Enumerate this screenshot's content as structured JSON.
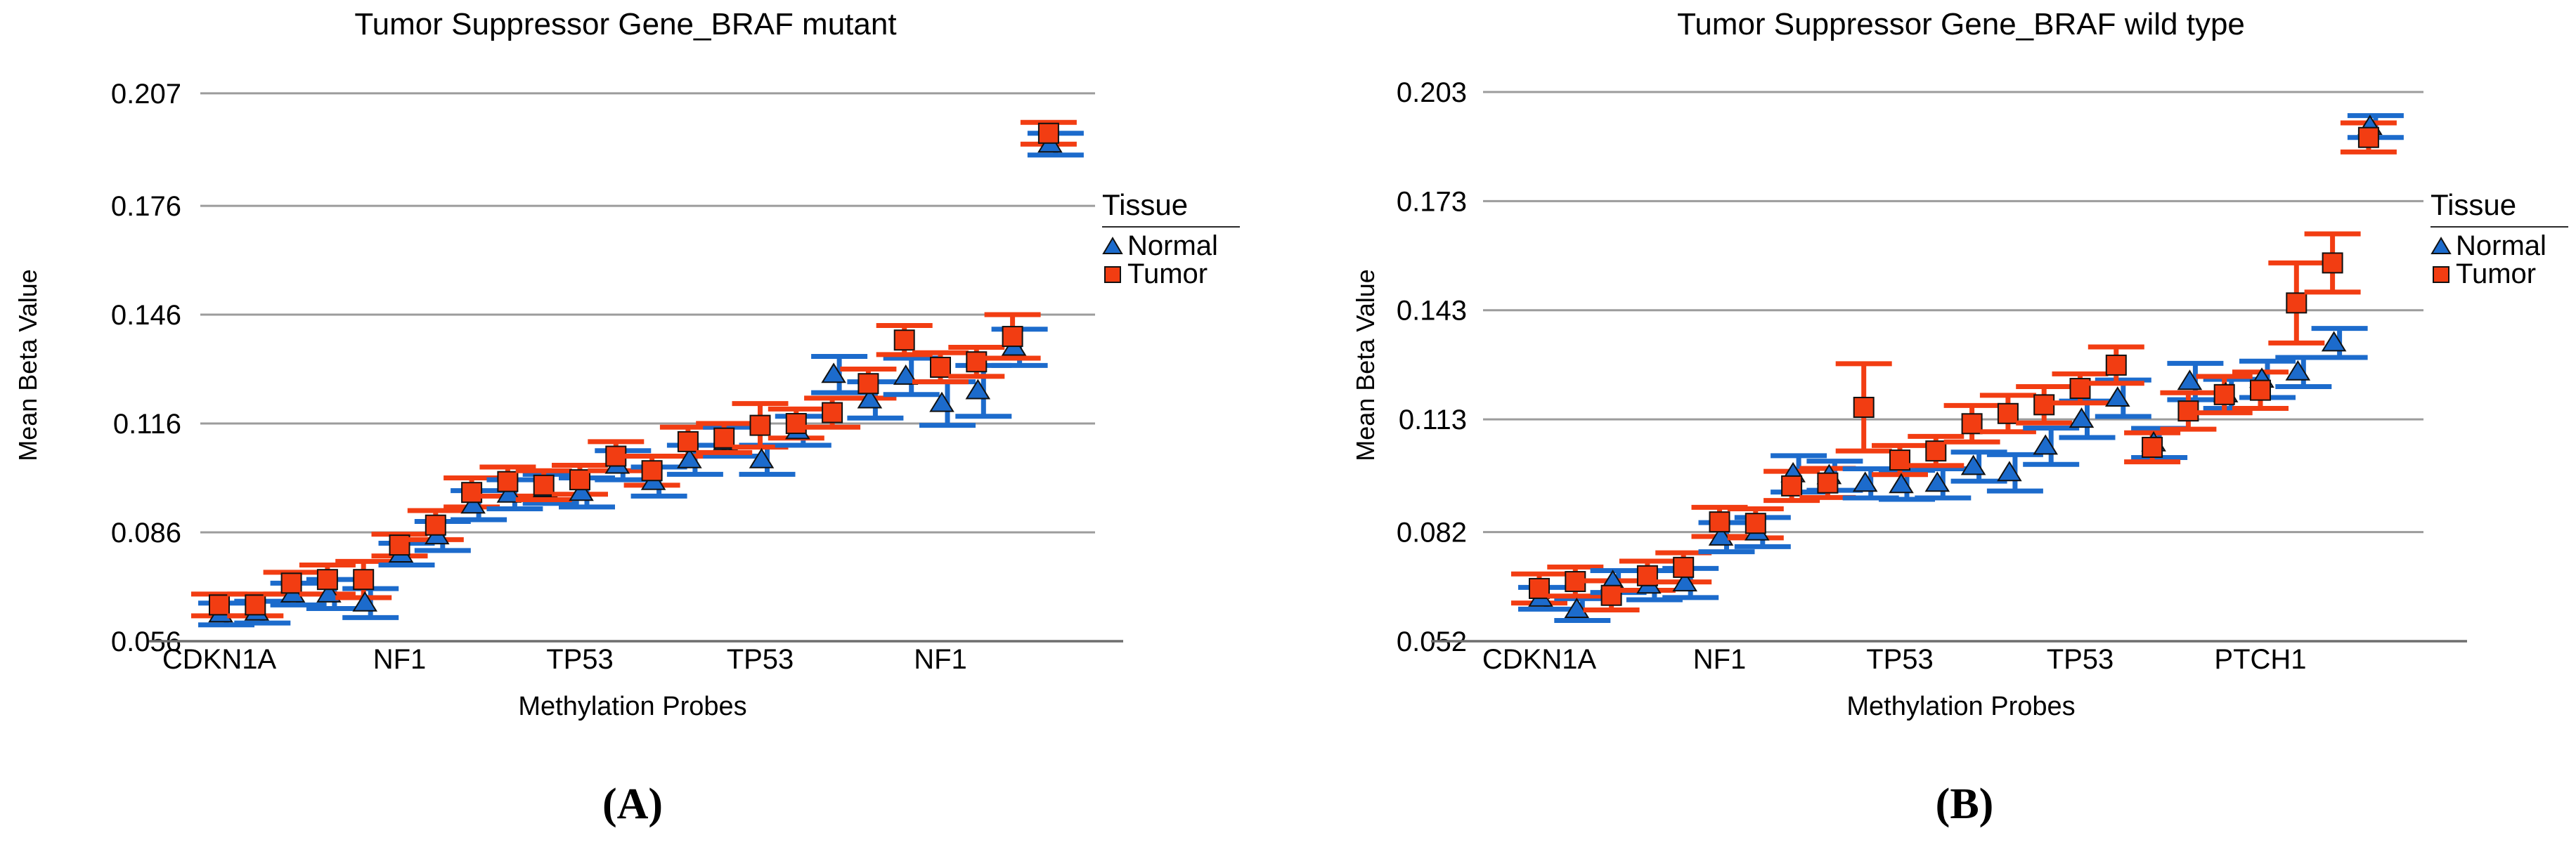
{
  "figure": {
    "background": "#ffffff",
    "grid_color": "#9C9C9C",
    "axis_color": "#6E6E6E",
    "panels": [
      {
        "panel_label": "(A)",
        "title": "Tumor Suppressor Gene_BRAF mutant",
        "y_axis_label": "Mean Beta Value",
        "x_axis_label": "Methylation Probes",
        "y_tick_labels": [
          "0.207",
          "0.176",
          "0.146",
          "0.116",
          "0.086",
          "0.056"
        ],
        "x_tick_labels": [
          "CDKN1A",
          "NF1",
          "TP53",
          "TP53",
          "NF1"
        ],
        "legend": {
          "title": "Tissue",
          "items": [
            {
              "label": "Normal",
              "marker": "triangle-icon",
              "color": "#1C6BCC"
            },
            {
              "label": "Tumor",
              "marker": "square-icon",
              "color": "#F23D12"
            }
          ]
        }
      },
      {
        "panel_label": "(B)",
        "title": "Tumor Suppressor Gene_BRAF wild type",
        "y_axis_label": "Mean Beta Value",
        "x_axis_label": "Methylation Probes",
        "y_tick_labels": [
          "0.203",
          "0.173",
          "0.143",
          "0.113",
          "0.082",
          "0.052"
        ],
        "x_tick_labels": [
          "CDKN1A",
          "NF1",
          "TP53",
          "TP53",
          "PTCH1"
        ],
        "legend": {
          "title": "Tissue",
          "items": [
            {
              "label": "Normal",
              "marker": "triangle-icon",
              "color": "#1C6BCC"
            },
            {
              "label": "Tumor",
              "marker": "square-icon",
              "color": "#F23D12"
            }
          ]
        }
      }
    ]
  },
  "chart_data": [
    {
      "type": "scatter",
      "panel": "A",
      "title": "Tumor Suppressor Gene_BRAF mutant",
      "xlabel": "Methylation Probes",
      "ylabel": "Mean Beta Value",
      "legend_position": "right",
      "grid": true,
      "y_ticks": [
        0.207,
        0.176,
        0.146,
        0.116,
        0.086,
        0.056
      ],
      "ylim": [
        0.056,
        0.212
      ],
      "n_probes": 24,
      "x_groups": [
        {
          "gene": "CDKN1A",
          "probe_slots": [
            1,
            5
          ]
        },
        {
          "gene": "NF1",
          "probe_slots": [
            6,
            10
          ]
        },
        {
          "gene": "TP53",
          "probe_slots": [
            11,
            15
          ]
        },
        {
          "gene": "TP53",
          "probe_slots": [
            16,
            20
          ]
        },
        {
          "gene": "NF1",
          "probe_slots": [
            21,
            24
          ]
        }
      ],
      "series": [
        {
          "name": "Normal",
          "marker": "triangle",
          "color": "#1C6BCC",
          "values": [
            0.0635,
            0.064,
            0.069,
            0.069,
            0.0665,
            0.08,
            0.085,
            0.0935,
            0.0965,
            0.098,
            0.097,
            0.1045,
            0.1,
            0.106,
            0.111,
            0.106,
            0.114,
            0.1295,
            0.1225,
            0.129,
            0.1215,
            0.125,
            0.137,
            0.193
          ],
          "errors": [
            0.003,
            0.003,
            0.003,
            0.004,
            0.004,
            0.003,
            0.004,
            0.004,
            0.004,
            0.004,
            0.004,
            0.004,
            0.004,
            0.004,
            0.004,
            0.004,
            0.004,
            0.005,
            0.005,
            0.005,
            0.006,
            0.007,
            0.005,
            0.003
          ]
        },
        {
          "name": "Tumor",
          "marker": "square",
          "color": "#F23D12",
          "values": [
            0.066,
            0.066,
            0.072,
            0.073,
            0.073,
            0.0825,
            0.088,
            0.097,
            0.1,
            0.099,
            0.1005,
            0.107,
            0.103,
            0.111,
            0.112,
            0.1155,
            0.116,
            0.119,
            0.127,
            0.139,
            0.1315,
            0.133,
            0.14,
            0.196
          ],
          "errors": [
            0.003,
            0.003,
            0.003,
            0.004,
            0.005,
            0.003,
            0.004,
            0.004,
            0.004,
            0.004,
            0.004,
            0.004,
            0.004,
            0.004,
            0.004,
            0.006,
            0.004,
            0.004,
            0.004,
            0.004,
            0.004,
            0.004,
            0.006,
            0.003
          ]
        }
      ]
    },
    {
      "type": "scatter",
      "panel": "B",
      "title": "Tumor Suppressor Gene_BRAF wild type",
      "xlabel": "Methylation Probes",
      "ylabel": "Mean Beta Value",
      "legend_position": "right",
      "grid": true,
      "y_ticks": [
        0.203,
        0.173,
        0.143,
        0.113,
        0.082,
        0.052
      ],
      "ylim": [
        0.052,
        0.208
      ],
      "n_probes": 24,
      "x_groups": [
        {
          "gene": "CDKN1A",
          "probe_slots": [
            1,
            5
          ]
        },
        {
          "gene": "NF1",
          "probe_slots": [
            6,
            10
          ]
        },
        {
          "gene": "TP53",
          "probe_slots": [
            11,
            15
          ]
        },
        {
          "gene": "TP53",
          "probe_slots": [
            16,
            20
          ]
        },
        {
          "gene": "PTCH1",
          "probe_slots": [
            21,
            24
          ]
        }
      ],
      "series": [
        {
          "name": "Normal",
          "marker": "triangle",
          "color": "#1C6BCC",
          "values": [
            0.0638,
            0.0607,
            0.0684,
            0.0674,
            0.068,
            0.0806,
            0.082,
            0.098,
            0.0975,
            0.0954,
            0.095,
            0.0954,
            0.1,
            0.0983,
            0.1056,
            0.113,
            0.1188,
            0.1065,
            0.1234,
            0.12,
            0.124,
            0.126,
            0.134,
            0.1935
          ],
          "errors": [
            0.003,
            0.003,
            0.003,
            0.004,
            0.004,
            0.004,
            0.004,
            0.005,
            0.004,
            0.004,
            0.004,
            0.004,
            0.004,
            0.005,
            0.005,
            0.005,
            0.005,
            0.004,
            0.005,
            0.004,
            0.005,
            0.004,
            0.004,
            0.003
          ]
        },
        {
          "name": "Tumor",
          "marker": "square",
          "color": "#F23D12",
          "values": [
            0.0665,
            0.0684,
            0.0646,
            0.07,
            0.0723,
            0.0848,
            0.0844,
            0.0947,
            0.0955,
            0.1163,
            0.1018,
            0.1043,
            0.1118,
            0.1146,
            0.117,
            0.1215,
            0.1279,
            0.1053,
            0.1153,
            0.1198,
            0.121,
            0.145,
            0.156,
            0.1905
          ],
          "errors": [
            0.004,
            0.004,
            0.004,
            0.004,
            0.004,
            0.004,
            0.004,
            0.004,
            0.004,
            0.012,
            0.004,
            0.004,
            0.005,
            0.005,
            0.005,
            0.004,
            0.005,
            0.004,
            0.005,
            0.005,
            0.005,
            0.011,
            0.008,
            0.004
          ]
        }
      ]
    }
  ]
}
